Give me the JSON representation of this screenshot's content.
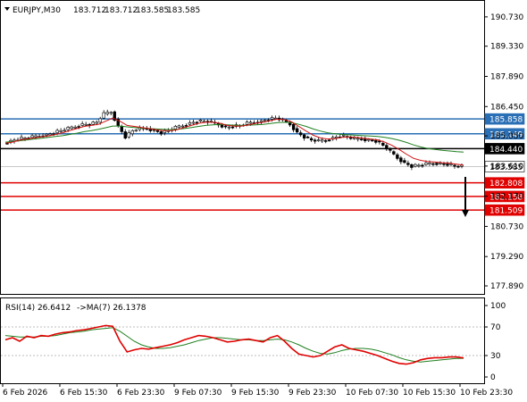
{
  "header": {
    "symbol": "EURJPY,M30",
    "open": "183.712",
    "high": "183.712",
    "low": "183.585",
    "close": "183.585"
  },
  "colors": {
    "candle": "#000000",
    "ma_fast": "#d01010",
    "ma_slow": "#208020",
    "hline_blue": "#2a6fb5",
    "hline_red": "#e00000",
    "hline_black": "#000000",
    "price_tag": "#ffffff",
    "rsi": "#e00000",
    "rsi_ma": "#208020"
  },
  "chart_data": [
    {
      "type": "candlestick",
      "price_axis": {
        "ticks": [
          "190.730",
          "189.330",
          "187.890",
          "186.450",
          "185.050",
          "183.610",
          "182.170",
          "180.730",
          "179.290",
          "177.890"
        ],
        "ylim": [
          177.55,
          191.45
        ]
      },
      "x_ticks": [
        "6 Feb 2026",
        "6 Feb 15:30",
        "6 Feb 23:30",
        "9 Feb 07:30",
        "9 Feb 15:30",
        "9 Feb 23:30",
        "10 Feb 07:30",
        "10 Feb 15:30",
        "10 Feb 23:30"
      ],
      "close_path": [
        184.7,
        184.8,
        184.9,
        184.95,
        185.0,
        185.05,
        185.1,
        185.2,
        185.3,
        185.4,
        185.5,
        185.6,
        185.6,
        185.7,
        186.1,
        186.2,
        185.5,
        185.0,
        185.3,
        185.4,
        185.4,
        185.3,
        185.2,
        185.3,
        185.45,
        185.55,
        185.65,
        185.75,
        185.75,
        185.7,
        185.6,
        185.45,
        185.5,
        185.55,
        185.65,
        185.7,
        185.75,
        185.85,
        185.9,
        185.8,
        185.6,
        185.2,
        185.0,
        184.85,
        184.8,
        184.85,
        184.95,
        185.05,
        185.0,
        184.9,
        184.9,
        184.85,
        184.8,
        184.6,
        184.3,
        184.0,
        183.75,
        183.6,
        183.65,
        183.7,
        183.75,
        183.72,
        183.7,
        183.6,
        183.585
      ],
      "ma_fast_path": [
        184.7,
        184.75,
        184.85,
        184.9,
        184.95,
        185.0,
        185.05,
        185.12,
        185.2,
        185.3,
        185.4,
        185.5,
        185.55,
        185.6,
        185.75,
        185.9,
        185.75,
        185.55,
        185.5,
        185.45,
        185.4,
        185.35,
        185.3,
        185.3,
        185.35,
        185.45,
        185.55,
        185.65,
        185.7,
        185.7,
        185.65,
        185.55,
        185.52,
        185.52,
        185.58,
        185.65,
        185.7,
        185.78,
        185.85,
        185.82,
        185.72,
        185.5,
        185.28,
        185.08,
        184.95,
        184.9,
        184.92,
        184.98,
        185.0,
        184.98,
        184.94,
        184.9,
        184.86,
        184.75,
        184.6,
        184.4,
        184.18,
        183.98,
        183.88,
        183.82,
        183.8,
        183.77,
        183.75,
        183.7,
        183.65
      ],
      "ma_slow_path": [
        184.75,
        184.78,
        184.82,
        184.86,
        184.9,
        184.94,
        184.98,
        185.02,
        185.06,
        185.12,
        185.18,
        185.25,
        185.3,
        185.36,
        185.44,
        185.52,
        185.52,
        185.48,
        185.45,
        185.42,
        185.4,
        185.38,
        185.36,
        185.35,
        185.36,
        185.4,
        185.45,
        185.5,
        185.55,
        185.58,
        185.6,
        185.58,
        185.56,
        185.55,
        185.56,
        185.58,
        185.6,
        185.64,
        185.68,
        185.7,
        185.68,
        185.6,
        185.5,
        185.38,
        185.28,
        185.2,
        185.15,
        185.12,
        185.1,
        185.08,
        185.06,
        185.04,
        185.02,
        184.98,
        184.92,
        184.84,
        184.74,
        184.62,
        184.52,
        184.45,
        184.4,
        184.36,
        184.33,
        184.3,
        184.28
      ],
      "levels": [
        {
          "label": "185.858",
          "value": 185.858,
          "color": "blue"
        },
        {
          "label": "185.149",
          "value": 185.149,
          "color": "blue"
        },
        {
          "label": "184.440",
          "value": 184.44,
          "color": "black"
        },
        {
          "label": "183.585",
          "value": 183.585,
          "color": "price"
        },
        {
          "label": "182.808",
          "value": 182.808,
          "color": "red"
        },
        {
          "label": "182.158",
          "value": 182.158,
          "color": "red"
        },
        {
          "label": "181.509",
          "value": 181.509,
          "color": "red"
        }
      ]
    },
    {
      "type": "line",
      "label": "RSI(14) 26.6412",
      "ma_label": "->MA(7) 26.1378",
      "y_ticks": [
        "100",
        "70",
        "30",
        "0"
      ],
      "ylim": [
        0,
        100
      ],
      "levels": [
        70,
        30
      ],
      "rsi": [
        52,
        55,
        50,
        57,
        55,
        58,
        57,
        60,
        62,
        63,
        65,
        66,
        68,
        70,
        72,
        71,
        50,
        35,
        38,
        40,
        39,
        41,
        43,
        45,
        48,
        52,
        55,
        58,
        57,
        55,
        52,
        49,
        50,
        52,
        53,
        51,
        49,
        55,
        58,
        50,
        40,
        32,
        30,
        28,
        30,
        36,
        42,
        45,
        40,
        38,
        36,
        33,
        30,
        26,
        22,
        19,
        18,
        20,
        24,
        26,
        27,
        27,
        28,
        28,
        26.64
      ],
      "rsi_ma": [
        58,
        57,
        56,
        56,
        56,
        57,
        57,
        58,
        60,
        62,
        63,
        64,
        66,
        67,
        68,
        69,
        64,
        57,
        50,
        45,
        42,
        40,
        40,
        41,
        43,
        45,
        48,
        51,
        53,
        55,
        55,
        54,
        53,
        52,
        52,
        51,
        51,
        52,
        53,
        52,
        49,
        45,
        40,
        36,
        33,
        32,
        34,
        37,
        39,
        40,
        40,
        39,
        37,
        34,
        31,
        27,
        24,
        22,
        21,
        22,
        23,
        24,
        25,
        26,
        26.14
      ]
    }
  ]
}
